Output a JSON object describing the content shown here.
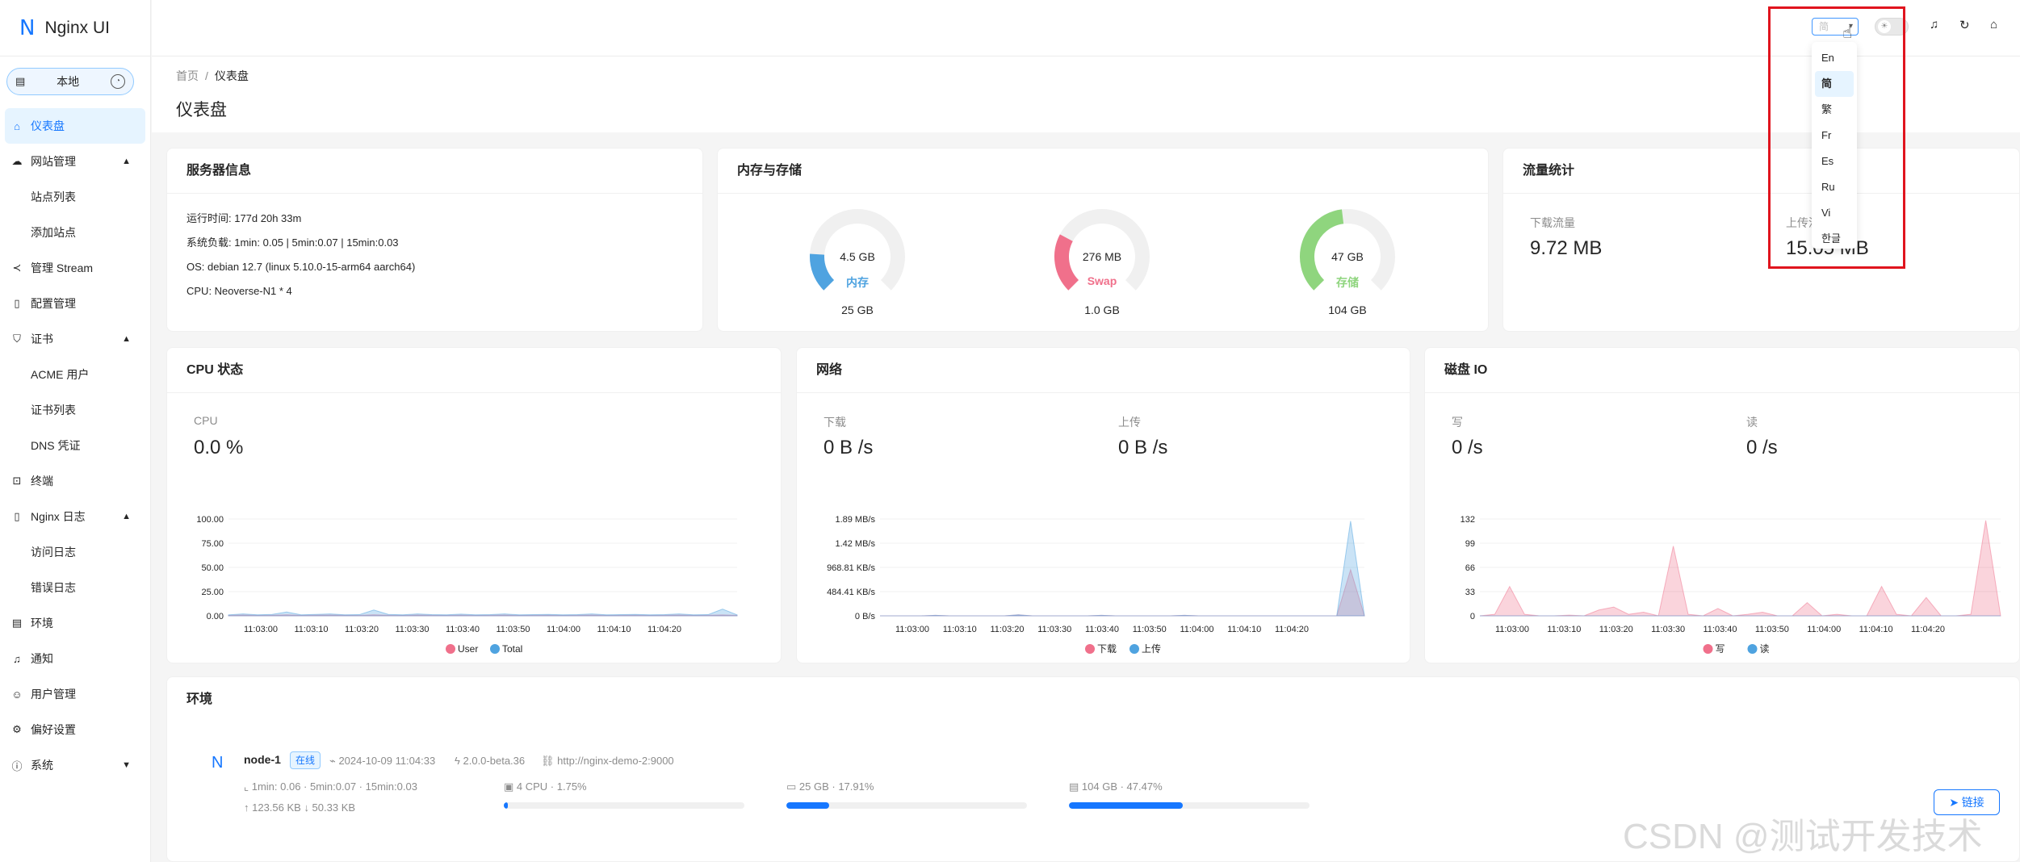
{
  "app": {
    "logo": "N",
    "title": "Nginx UI"
  },
  "env_switch": {
    "label": "本地"
  },
  "sidebar": {
    "items": [
      {
        "label": "仪表盘"
      },
      {
        "label": "网站管理"
      },
      {
        "label": "站点列表"
      },
      {
        "label": "添加站点"
      },
      {
        "label": "管理 Stream"
      },
      {
        "label": "配置管理"
      },
      {
        "label": "证书"
      },
      {
        "label": "ACME 用户"
      },
      {
        "label": "证书列表"
      },
      {
        "label": "DNS 凭证"
      },
      {
        "label": "终端"
      },
      {
        "label": "Nginx 日志"
      },
      {
        "label": "访问日志"
      },
      {
        "label": "错误日志"
      },
      {
        "label": "环境"
      },
      {
        "label": "通知"
      },
      {
        "label": "用户管理"
      },
      {
        "label": "偏好设置"
      },
      {
        "label": "系统"
      }
    ]
  },
  "header": {
    "lang_value": "简",
    "lang_options": [
      "En",
      "简",
      "繁",
      "Fr",
      "Es",
      "Ru",
      "Vi",
      "한글"
    ],
    "lang_selected": "简"
  },
  "breadcrumb": {
    "home": "首页",
    "current": "仪表盘"
  },
  "page_title": "仪表盘",
  "server_info": {
    "title": "服务器信息",
    "uptime": "运行时间: 177d 20h 33m",
    "load": "系统负载: 1min: 0.05 | 5min:0.07 | 15min:0.03",
    "os": "OS: debian 12.7 (linux 5.10.0-15-arm64 aarch64)",
    "cpu": "CPU: Neoverse-N1 * 4"
  },
  "memory": {
    "title": "内存与存储",
    "gauges": [
      {
        "value": "4.5 GB",
        "label": "内存",
        "total": "25 GB",
        "percent": 17.91,
        "color": "#4fa3e0"
      },
      {
        "value": "276 MB",
        "label": "Swap",
        "total": "1.0 GB",
        "percent": 27,
        "color": "#f0708b"
      },
      {
        "value": "47 GB",
        "label": "存储",
        "total": "104 GB",
        "percent": 47.47,
        "color": "#8fd57e"
      }
    ]
  },
  "traffic": {
    "title": "流量统计",
    "down_label": "下载流量",
    "down_value": "9.72 MB",
    "up_label": "上传流量",
    "up_value": "15.05 MB"
  },
  "cpu": {
    "title": "CPU 状态",
    "label": "CPU",
    "value": "0.0 %"
  },
  "network": {
    "title": "网络",
    "down_label": "下载",
    "down_value": "0 B /s",
    "up_label": "上传",
    "up_value": "0 B /s"
  },
  "disk": {
    "title": "磁盘 IO",
    "write_label": "写",
    "write_value": "0 /s",
    "read_label": "读",
    "read_value": "0 /s"
  },
  "chart_data": [
    {
      "type": "area",
      "title": "CPU 状态",
      "ylim": [
        0,
        100
      ],
      "yticks": [
        "100.00",
        "75.00",
        "50.00",
        "25.00",
        "0.00"
      ],
      "xticks": [
        "11:03:00",
        "11:03:10",
        "11:03:20",
        "11:03:30",
        "11:03:40",
        "11:03:50",
        "11:04:00",
        "11:04:10",
        "11:04:20"
      ],
      "series": [
        {
          "name": "User",
          "color": "#f0708b",
          "values": [
            0.5,
            0.8,
            0.5,
            0.6,
            1,
            0.5,
            0.7,
            0.8,
            0.6,
            0.5,
            1,
            0.6,
            0.5,
            0.8,
            0.6,
            0.5,
            0.7,
            0.5,
            0.6,
            0.8,
            0.5,
            0.6,
            0.7,
            0.5,
            0.6,
            0.8,
            0.5,
            0.6,
            0.7,
            0.5,
            0.6,
            0.8,
            0.5,
            0.6,
            0.9,
            0.5
          ]
        },
        {
          "name": "Total",
          "color": "#4fa3e0",
          "values": [
            1,
            2,
            1,
            1.5,
            4,
            1,
            1.5,
            2,
            1,
            1.2,
            6,
            1.5,
            1,
            2,
            1.2,
            1,
            1.8,
            1,
            1.2,
            2,
            1,
            1.2,
            1.5,
            1,
            1.2,
            2,
            1,
            1.2,
            1.5,
            1,
            1.2,
            2,
            1,
            1.2,
            7,
            1
          ]
        }
      ]
    },
    {
      "type": "area",
      "title": "网络",
      "yticks": [
        "1.89 MB/s",
        "1.42 MB/s",
        "968.81 KB/s",
        "484.41 KB/s",
        "0 B/s"
      ],
      "ylim": [
        0,
        1.89
      ],
      "xticks": [
        "11:03:00",
        "11:03:10",
        "11:03:20",
        "11:03:30",
        "11:03:40",
        "11:03:50",
        "11:04:00",
        "11:04:10",
        "11:04:20"
      ],
      "series": [
        {
          "name": "下载",
          "color": "#f0708b",
          "values": [
            0,
            0,
            0,
            0,
            0.01,
            0,
            0,
            0,
            0,
            0,
            0.02,
            0,
            0,
            0,
            0,
            0,
            0.01,
            0,
            0,
            0,
            0,
            0,
            0.01,
            0,
            0,
            0,
            0,
            0,
            0,
            0,
            0,
            0,
            0,
            0,
            0.9,
            0
          ]
        },
        {
          "name": "上传",
          "color": "#4fa3e0",
          "values": [
            0,
            0,
            0,
            0,
            0.01,
            0,
            0,
            0,
            0,
            0,
            0.02,
            0,
            0,
            0,
            0,
            0,
            0.01,
            0,
            0,
            0,
            0,
            0,
            0.01,
            0,
            0,
            0,
            0,
            0,
            0,
            0,
            0,
            0,
            0,
            0,
            1.85,
            0
          ]
        }
      ]
    },
    {
      "type": "area",
      "title": "磁盘 IO",
      "ylim": [
        0,
        132
      ],
      "yticks": [
        "132",
        "99",
        "66",
        "33",
        "0"
      ],
      "xticks": [
        "11:03:00",
        "11:03:10",
        "11:03:20",
        "11:03:30",
        "11:03:40",
        "11:03:50",
        "11:04:00",
        "11:04:10",
        "11:04:20"
      ],
      "series": [
        {
          "name": "写",
          "color": "#f0708b",
          "values": [
            0,
            2,
            40,
            2,
            0,
            0,
            1,
            0,
            8,
            12,
            2,
            5,
            0,
            95,
            2,
            0,
            10,
            0,
            2,
            5,
            0,
            0,
            18,
            0,
            2,
            0,
            0,
            40,
            2,
            0,
            25,
            0,
            0,
            2,
            130,
            0
          ]
        },
        {
          "name": "读",
          "color": "#4fa3e0",
          "values": [
            0,
            0,
            0,
            0,
            0,
            0,
            0,
            0,
            0,
            0,
            0,
            0,
            0,
            0,
            0,
            0,
            0,
            0,
            0,
            0,
            0,
            0,
            0,
            0,
            0,
            0,
            0,
            0,
            0,
            0,
            0,
            0,
            0,
            0,
            0,
            0
          ]
        }
      ]
    }
  ],
  "environment": {
    "title": "环境",
    "node": {
      "name": "node-1",
      "status": "在线",
      "time": "2024-10-09 11:04:33",
      "version": "2.0.0-beta.36",
      "url": "http://nginx-demo-2:9000",
      "load": "1min: 0.06 · 5min:0.07 · 15min:0.03",
      "net": "↑ 123.56 KB  ↓ 50.33 KB",
      "cpu": "4 CPU · 1.75%",
      "cpu_percent": 1.75,
      "mem": "25 GB · 17.91%",
      "mem_percent": 17.91,
      "disk": "104 GB · 47.47%",
      "disk_percent": 47.47,
      "link_label": "链接"
    }
  },
  "watermark": "CSDN @测试开发技术"
}
